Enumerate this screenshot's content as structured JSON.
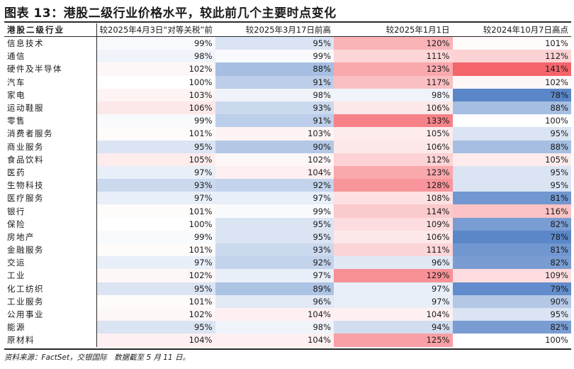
{
  "title": "图表 13：港股二级行业价格水平，较此前几个主要时点变化",
  "headers": [
    "港股二级行业",
    "较2025年4月3日“对等关税”前",
    "较2025年3月17日前高",
    "较2025年1月1日",
    "较2024年10月7日高点"
  ],
  "rows": [
    {
      "name": "信息技术",
      "values": [
        "99%",
        "95%",
        "120%",
        "101%"
      ]
    },
    {
      "name": "通信",
      "values": [
        "98%",
        "99%",
        "111%",
        "112%"
      ]
    },
    {
      "name": "硬件及半导体",
      "values": [
        "102%",
        "88%",
        "123%",
        "141%"
      ]
    },
    {
      "name": "汽车",
      "values": [
        "100%",
        "91%",
        "117%",
        "102%"
      ]
    },
    {
      "name": "家电",
      "values": [
        "103%",
        "98%",
        "98%",
        "78%"
      ]
    },
    {
      "name": "运动鞋服",
      "values": [
        "106%",
        "93%",
        "106%",
        "88%"
      ]
    },
    {
      "name": "零售",
      "values": [
        "99%",
        "91%",
        "133%",
        "100%"
      ]
    },
    {
      "name": "消费者服务",
      "values": [
        "101%",
        "103%",
        "105%",
        "95%"
      ]
    },
    {
      "name": "商业服务",
      "values": [
        "95%",
        "90%",
        "106%",
        "88%"
      ]
    },
    {
      "name": "食品饮料",
      "values": [
        "105%",
        "102%",
        "112%",
        "105%"
      ]
    },
    {
      "name": "医药",
      "values": [
        "97%",
        "104%",
        "123%",
        "95%"
      ]
    },
    {
      "name": "生物科技",
      "values": [
        "93%",
        "92%",
        "128%",
        "95%"
      ]
    },
    {
      "name": "医疗服务",
      "values": [
        "97%",
        "97%",
        "108%",
        "81%"
      ]
    },
    {
      "name": "银行",
      "values": [
        "101%",
        "99%",
        "114%",
        "116%"
      ]
    },
    {
      "name": "保险",
      "values": [
        "100%",
        "95%",
        "109%",
        "82%"
      ]
    },
    {
      "name": "房地产",
      "values": [
        "99%",
        "95%",
        "106%",
        "78%"
      ]
    },
    {
      "name": "金融服务",
      "values": [
        "101%",
        "93%",
        "111%",
        "81%"
      ]
    },
    {
      "name": "交运",
      "values": [
        "97%",
        "92%",
        "96%",
        "82%"
      ]
    },
    {
      "name": "工业",
      "values": [
        "102%",
        "97%",
        "129%",
        "109%"
      ]
    },
    {
      "name": "化工纺织",
      "values": [
        "95%",
        "89%",
        "97%",
        "79%"
      ]
    },
    {
      "name": "工业服务",
      "values": [
        "101%",
        "96%",
        "97%",
        "90%"
      ]
    },
    {
      "name": "公用事业",
      "values": [
        "102%",
        "104%",
        "104%",
        "95%"
      ]
    },
    {
      "name": "能源",
      "values": [
        "95%",
        "98%",
        "94%",
        "82%"
      ]
    },
    {
      "name": "原材料",
      "values": [
        "104%",
        "104%",
        "125%",
        "100%"
      ]
    }
  ],
  "footnote": "资料来源：FactSet，交银国际　数据截至 5 月 11 日。",
  "colors": {
    "low": "#5b87c8",
    "mid": "#ffffff",
    "high": "#f4646b"
  }
}
